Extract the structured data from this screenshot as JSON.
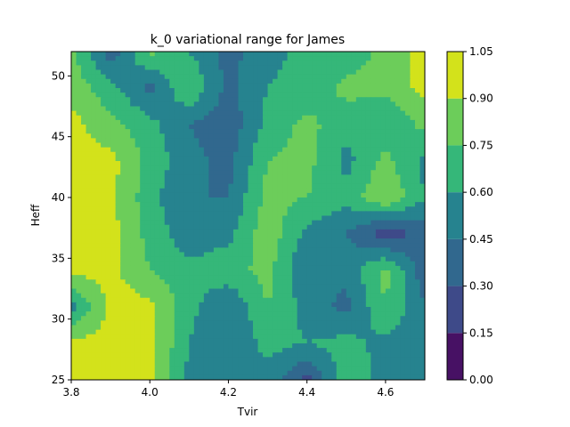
{
  "chart_data": {
    "type": "heatmap",
    "subtype": "filled-contour",
    "title": "k_0 variational range for James",
    "xlabel": "Tvir",
    "ylabel": "Heff",
    "xlim": [
      3.8,
      4.7
    ],
    "ylim": [
      25,
      52
    ],
    "x_ticks": [
      {
        "value": 3.8,
        "label": "3.8"
      },
      {
        "value": 4.0,
        "label": "4.0"
      },
      {
        "value": 4.2,
        "label": "4.2"
      },
      {
        "value": 4.4,
        "label": "4.4"
      },
      {
        "value": 4.6,
        "label": "4.6"
      }
    ],
    "y_ticks": [
      {
        "value": 25,
        "label": "25"
      },
      {
        "value": 30,
        "label": "30"
      },
      {
        "value": 35,
        "label": "35"
      },
      {
        "value": 40,
        "label": "40"
      },
      {
        "value": 45,
        "label": "45"
      },
      {
        "value": 50,
        "label": "50"
      }
    ],
    "levels": [
      0.0,
      0.15,
      0.3,
      0.45,
      0.6,
      0.75,
      0.9,
      1.05
    ],
    "colorbar": {
      "range": [
        0.0,
        1.05
      ],
      "tick_labels": [
        "0.00",
        "0.15",
        "0.30",
        "0.45",
        "0.60",
        "0.75",
        "0.90",
        "1.05"
      ],
      "colors": [
        "#471164",
        "#3e4a89",
        "#31688e",
        "#26838f",
        "#35b779",
        "#6ccd5a",
        "#d3e21b"
      ]
    },
    "x": [
      3.8,
      3.9,
      4.0,
      4.1,
      4.2,
      4.3,
      4.4,
      4.5,
      4.6,
      4.7
    ],
    "y": [
      25,
      28,
      31,
      34,
      37,
      40,
      43,
      46,
      49,
      52
    ],
    "z": [
      [
        0.95,
        0.95,
        0.95,
        0.55,
        0.55,
        0.55,
        0.25,
        0.7,
        0.55,
        0.55
      ],
      [
        0.95,
        0.95,
        0.95,
        0.6,
        0.45,
        0.65,
        0.6,
        0.65,
        0.55,
        0.55
      ],
      [
        0.55,
        0.95,
        0.95,
        0.65,
        0.45,
        0.75,
        0.55,
        0.4,
        0.75,
        0.45
      ],
      [
        0.95,
        0.95,
        0.75,
        0.65,
        0.7,
        0.8,
        0.45,
        0.5,
        0.8,
        0.35
      ],
      [
        0.95,
        0.95,
        0.7,
        0.5,
        0.55,
        0.85,
        0.55,
        0.45,
        0.2,
        0.35
      ],
      [
        0.95,
        0.95,
        0.65,
        0.45,
        0.45,
        0.8,
        0.75,
        0.65,
        0.9,
        0.6
      ],
      [
        0.95,
        0.95,
        0.7,
        0.5,
        0.4,
        0.75,
        0.8,
        0.55,
        0.8,
        0.55
      ],
      [
        0.95,
        0.8,
        0.65,
        0.45,
        0.35,
        0.65,
        0.8,
        0.65,
        0.6,
        0.8
      ],
      [
        0.85,
        0.65,
        0.4,
        0.75,
        0.4,
        0.6,
        0.65,
        0.8,
        0.8,
        0.95
      ],
      [
        0.8,
        0.35,
        0.8,
        0.6,
        0.4,
        0.55,
        0.65,
        0.65,
        0.8,
        0.95
      ]
    ]
  }
}
